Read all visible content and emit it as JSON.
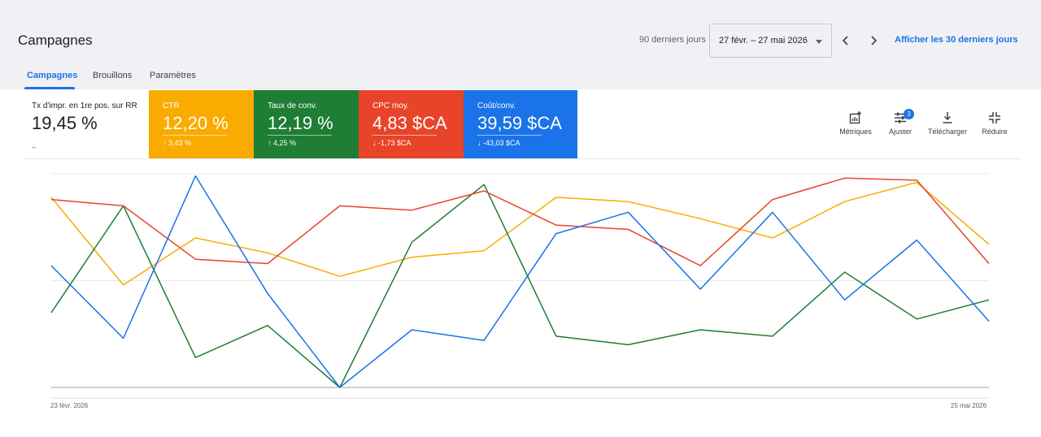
{
  "header": {
    "title": "Campagnes",
    "range_label": "90 derniers jours",
    "date_range": "27 févr. – 27 mai 2026",
    "last30_link": "Afficher les 30 derniers jours"
  },
  "tabs": [
    {
      "label": "Campagnes",
      "active": true
    },
    {
      "label": "Brouillons",
      "active": false
    },
    {
      "label": "Paramètres",
      "active": false
    }
  ],
  "metrics": [
    {
      "label": "Tx d'impr. en 1re pos. sur RR",
      "value": "19,45 %",
      "delta": "–",
      "color": "#ffffff"
    },
    {
      "label": "CTR",
      "value": "12,20 %",
      "delta": "↑ 3,43 %",
      "color": "#f9ab00"
    },
    {
      "label": "Taux de conv.",
      "value": "12,19 %",
      "delta": "↑ 4,25 %",
      "color": "#1e7e34"
    },
    {
      "label": "CPC moy.",
      "value": "4,83 $CA",
      "delta": "↓ -1,73 $CA",
      "color": "#e8442a"
    },
    {
      "label": "Coût/conv.",
      "value": "39,59 $CA",
      "delta": "↓ -43,03 $CA",
      "color": "#1a73e8"
    }
  ],
  "toolbar": {
    "metrics": "Métriques",
    "adjust": "Ajuster",
    "adjust_badge": "3",
    "download": "Télécharger",
    "reduce": "Réduire"
  },
  "chart_data": {
    "type": "line",
    "x_start_label": "23 févr. 2026",
    "x_end_label": "25 mai 2026",
    "ylim": [
      0,
      100
    ],
    "grid": true,
    "series": [
      {
        "color": "#f9ab00",
        "values": [
          89,
          48,
          70,
          63,
          52,
          61,
          64,
          89,
          87,
          79,
          70,
          87,
          96,
          67
        ]
      },
      {
        "color": "#1e7e34",
        "values": [
          35,
          85,
          14,
          29,
          0,
          68,
          95,
          24,
          20,
          27,
          24,
          54,
          32,
          41
        ]
      },
      {
        "color": "#e8442a",
        "values": [
          88,
          85,
          60,
          58,
          85,
          83,
          92,
          76,
          74,
          57,
          88,
          98,
          97,
          58
        ]
      },
      {
        "color": "#1a73e8",
        "values": [
          57,
          23,
          99,
          44,
          0,
          27,
          22,
          72,
          82,
          46,
          82,
          41,
          69,
          31
        ]
      }
    ]
  }
}
